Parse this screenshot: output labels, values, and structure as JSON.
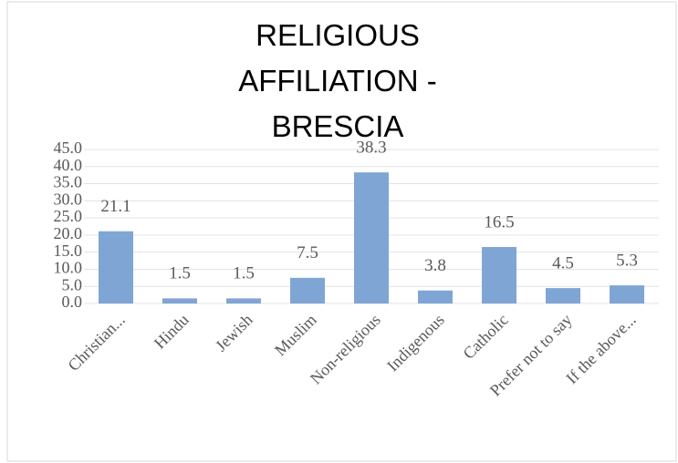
{
  "chart_data": {
    "type": "bar",
    "title": "RELIGIOUS AFFILIATION - BRESCIA",
    "categories": [
      "Christian...",
      "Hindu",
      "Jewish",
      "Muslim",
      "Non-religious",
      "Indigenous",
      "Catholic",
      "Prefer not to say",
      "If the above..."
    ],
    "values": [
      21.1,
      1.5,
      1.5,
      7.5,
      38.3,
      3.8,
      16.5,
      4.5,
      5.3
    ],
    "color": "#7fa5d5",
    "ylim": [
      0,
      45
    ],
    "yticks": [
      {
        "value": 0,
        "label": "0.0"
      },
      {
        "value": 5,
        "label": "5.0"
      },
      {
        "value": 10,
        "label": "10.0"
      },
      {
        "value": 15,
        "label": "15.0"
      },
      {
        "value": 20,
        "label": "20.0"
      },
      {
        "value": 25,
        "label": "25.0"
      },
      {
        "value": 30,
        "label": "30.0"
      },
      {
        "value": 35,
        "label": "35.0"
      },
      {
        "value": 40,
        "label": "40.0"
      },
      {
        "value": 45,
        "label": "45.0"
      }
    ],
    "grid": true
  }
}
